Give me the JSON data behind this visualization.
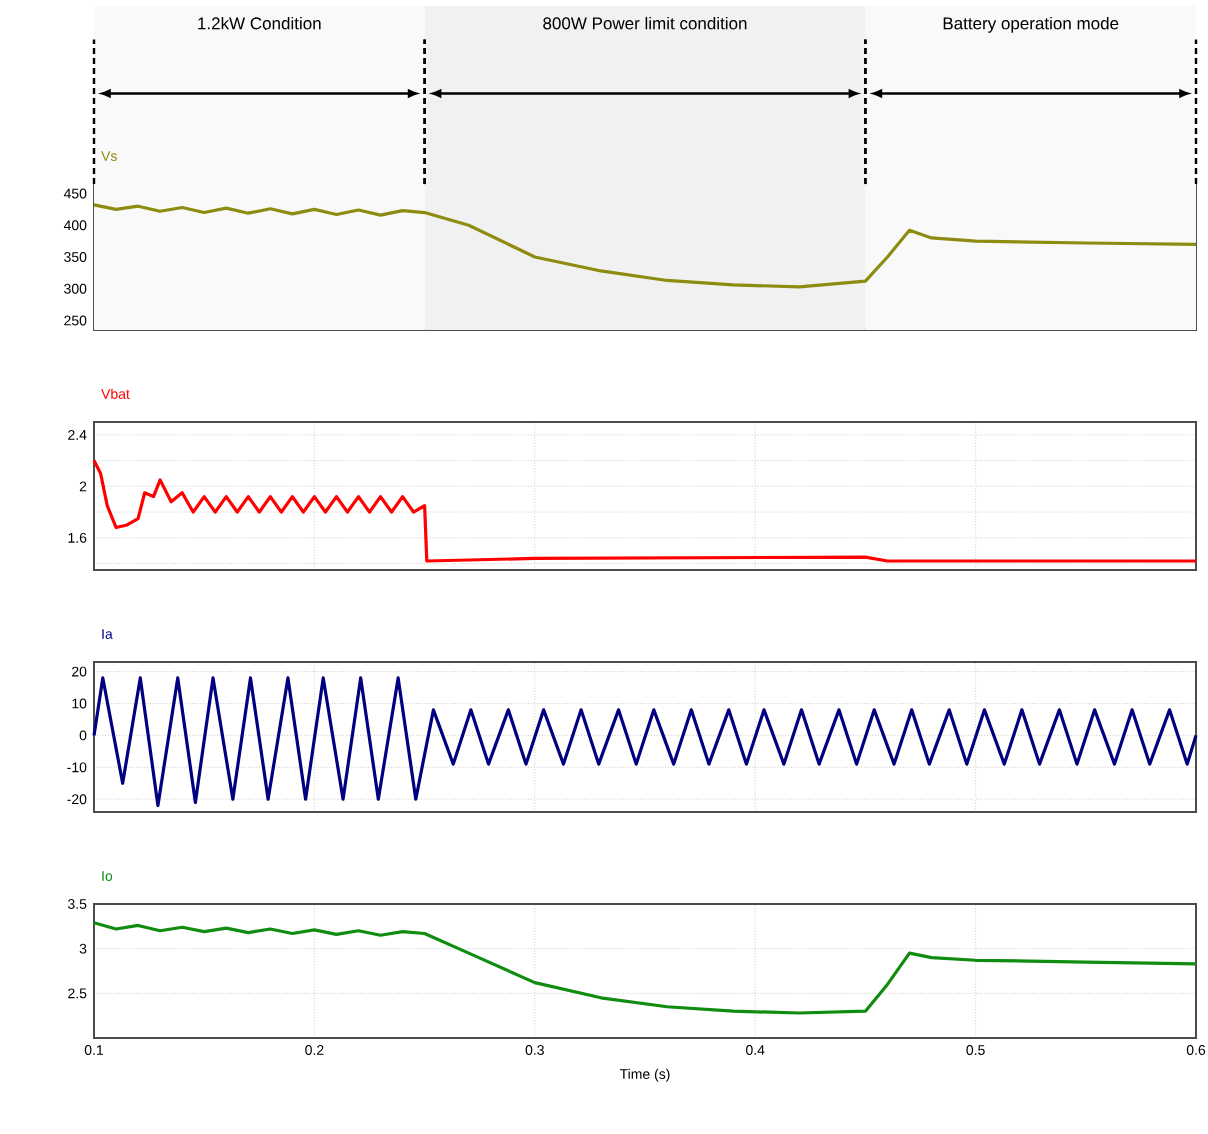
{
  "chart_data": [
    {
      "type": "line",
      "title": "Vs",
      "xlim": [
        0.1,
        0.6
      ],
      "ylim": [
        235,
        465
      ],
      "xticks": [
        0.1,
        0.2,
        0.3,
        0.4,
        0.5,
        0.6
      ],
      "yticks": [
        250,
        300,
        350,
        400,
        450
      ],
      "grid": true,
      "tick_labels": "y",
      "bands": [
        {
          "axis": "x",
          "from": 0.1,
          "to": 0.25,
          "label": "1.2kW Condition"
        },
        {
          "axis": "x",
          "from": 0.25,
          "to": 0.45,
          "label": "800W Power limit condition"
        },
        {
          "axis": "x",
          "from": 0.45,
          "to": 0.6,
          "label": "Battery operation mode"
        }
      ],
      "series": [
        {
          "color": "#8c8c10",
          "x": [
            0.1,
            0.11,
            0.12,
            0.13,
            0.14,
            0.15,
            0.16,
            0.17,
            0.18,
            0.19,
            0.2,
            0.21,
            0.22,
            0.23,
            0.24,
            0.25,
            0.27,
            0.3,
            0.33,
            0.36,
            0.39,
            0.42,
            0.45,
            0.46,
            0.47,
            0.48,
            0.5,
            0.55,
            0.6
          ],
          "values": [
            432,
            425,
            430,
            422,
            428,
            420,
            427,
            419,
            426,
            418,
            425,
            417,
            424,
            416,
            423,
            420,
            400,
            350,
            328,
            313,
            306,
            303,
            312,
            350,
            392,
            380,
            375,
            372,
            370
          ]
        }
      ]
    },
    {
      "type": "line",
      "title": "Vbat",
      "xlim": [
        0.1,
        0.6
      ],
      "ylim": [
        1.35,
        2.5
      ],
      "xticks": [
        0.1,
        0.2,
        0.3,
        0.4,
        0.5,
        0.6
      ],
      "yticks": [
        {
          "value": 1.4,
          "label": null
        },
        1.6,
        {
          "value": 1.8,
          "label": null
        },
        2,
        {
          "value": 2.2,
          "label": null
        },
        2.4
      ],
      "grid": true,
      "tick_labels": "y",
      "series": [
        {
          "color": "#ff0000",
          "x": [
            0.1,
            0.103,
            0.106,
            0.11,
            0.115,
            0.12,
            0.123,
            0.127,
            0.13,
            0.135,
            0.14,
            0.145,
            0.15,
            0.155,
            0.16,
            0.165,
            0.17,
            0.175,
            0.18,
            0.185,
            0.19,
            0.195,
            0.2,
            0.205,
            0.21,
            0.215,
            0.22,
            0.225,
            0.23,
            0.235,
            0.24,
            0.245,
            0.25,
            0.251,
            0.3,
            0.45,
            0.46,
            0.6
          ],
          "values": [
            2.2,
            2.1,
            1.85,
            1.68,
            1.7,
            1.75,
            1.95,
            1.92,
            2.05,
            1.88,
            1.95,
            1.8,
            1.92,
            1.8,
            1.92,
            1.8,
            1.92,
            1.8,
            1.92,
            1.8,
            1.92,
            1.8,
            1.92,
            1.8,
            1.92,
            1.8,
            1.92,
            1.8,
            1.92,
            1.8,
            1.92,
            1.8,
            1.85,
            1.42,
            1.44,
            1.45,
            1.42,
            1.42
          ]
        }
      ]
    },
    {
      "type": "line",
      "title": "Ia",
      "xlim": [
        0.1,
        0.6
      ],
      "ylim": [
        -24,
        23
      ],
      "xticks": [
        0.1,
        0.2,
        0.3,
        0.4,
        0.5,
        0.6
      ],
      "yticks": [
        -20,
        -10,
        0,
        10,
        20
      ],
      "grid": true,
      "tick_labels": "y",
      "series": [
        {
          "color": "#000080",
          "x": [
            0.1,
            0.104,
            0.113,
            0.121,
            0.129,
            0.138,
            0.146,
            0.154,
            0.163,
            0.171,
            0.179,
            0.188,
            0.196,
            0.204,
            0.213,
            0.221,
            0.229,
            0.238,
            0.246,
            0.254,
            0.263,
            0.271,
            0.279,
            0.288,
            0.296,
            0.304,
            0.313,
            0.321,
            0.329,
            0.338,
            0.346,
            0.354,
            0.363,
            0.371,
            0.379,
            0.388,
            0.396,
            0.404,
            0.413,
            0.421,
            0.429,
            0.438,
            0.446,
            0.454,
            0.463,
            0.471,
            0.479,
            0.488,
            0.496,
            0.504,
            0.513,
            0.521,
            0.529,
            0.538,
            0.546,
            0.554,
            0.563,
            0.571,
            0.579,
            0.588,
            0.596,
            0.6
          ],
          "values": [
            0,
            18,
            -15,
            18,
            -22,
            18,
            -21,
            18,
            -20,
            18,
            -20,
            18,
            -20,
            18,
            -20,
            18,
            -20,
            18,
            -20,
            8,
            -9,
            8,
            -9,
            8,
            -9,
            8,
            -9,
            8,
            -9,
            8,
            -9,
            8,
            -9,
            8,
            -9,
            8,
            -9,
            8,
            -9,
            8,
            -9,
            8,
            -9,
            8,
            -9,
            8,
            -9,
            8,
            -9,
            8,
            -9,
            8,
            -9,
            8,
            -9,
            8,
            -9,
            8,
            -9,
            8,
            -9,
            0
          ]
        }
      ]
    },
    {
      "type": "line",
      "title": "Io",
      "xlabel": "Time (s)",
      "xlim": [
        0.1,
        0.6
      ],
      "ylim": [
        2,
        3.5
      ],
      "xticks": [
        0.1,
        0.2,
        0.3,
        0.4,
        0.5,
        0.6
      ],
      "yticks": [
        2.5,
        3,
        3.5
      ],
      "grid": true,
      "series": [
        {
          "color": "#108c10",
          "x": [
            0.1,
            0.11,
            0.12,
            0.13,
            0.14,
            0.15,
            0.16,
            0.17,
            0.18,
            0.19,
            0.2,
            0.21,
            0.22,
            0.23,
            0.24,
            0.25,
            0.27,
            0.3,
            0.33,
            0.36,
            0.39,
            0.42,
            0.45,
            0.46,
            0.47,
            0.48,
            0.5,
            0.55,
            0.6
          ],
          "values": [
            3.29,
            3.22,
            3.26,
            3.2,
            3.24,
            3.19,
            3.23,
            3.18,
            3.22,
            3.17,
            3.21,
            3.16,
            3.2,
            3.15,
            3.19,
            3.17,
            2.95,
            2.62,
            2.45,
            2.35,
            2.3,
            2.28,
            2.3,
            2.6,
            2.95,
            2.9,
            2.87,
            2.85,
            2.83
          ]
        }
      ]
    }
  ]
}
